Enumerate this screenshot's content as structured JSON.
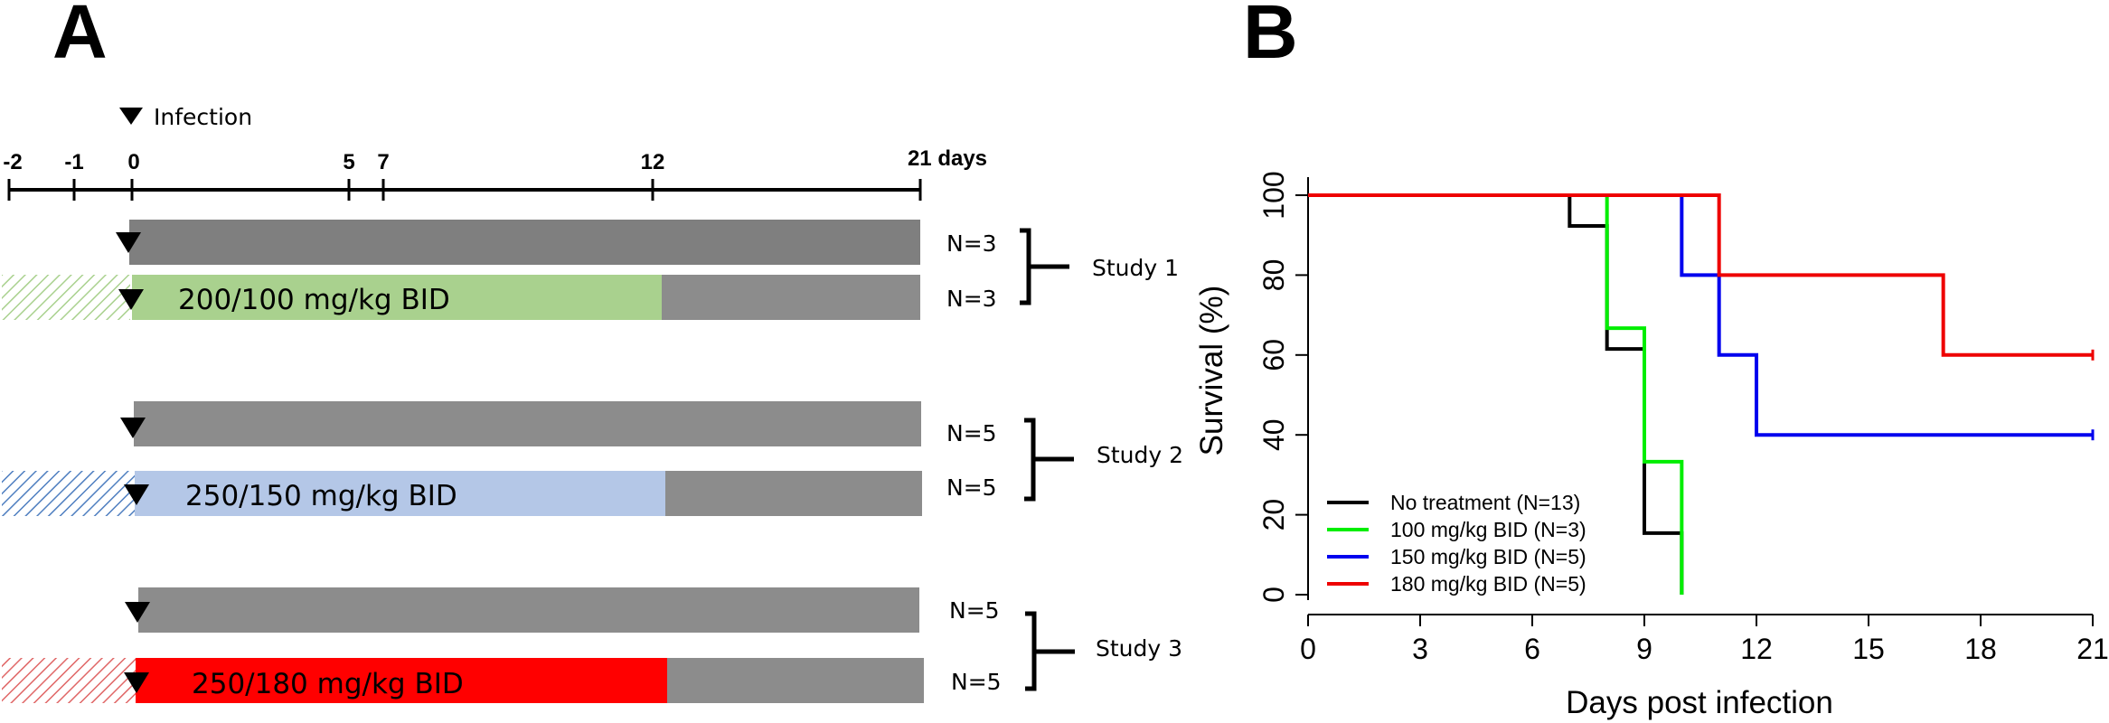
{
  "panel_a": {
    "letter": "A",
    "infection_label": "Infection",
    "timeline_ticks": [
      "-2",
      "-1",
      "0",
      "5",
      "7",
      "12"
    ],
    "timeline_end_label": "21 days",
    "rows": [
      {
        "n": "N=3",
        "label": "",
        "color": "#7f7f7f",
        "pretreat": ""
      },
      {
        "n": "N=3",
        "label": "200/100 mg/kg BID",
        "color": "#a9d18e",
        "pretreat": "#a9d18e"
      },
      {
        "n": "N=5",
        "label": "",
        "color": "#8c8c8c",
        "pretreat": ""
      },
      {
        "n": "N=5",
        "label": "250/150 mg/kg BID",
        "color": "#b4c7e7",
        "pretreat": "#4f7fc0"
      },
      {
        "n": "N=5",
        "label": "",
        "color": "#8c8c8c",
        "pretreat": ""
      },
      {
        "n": "N=5",
        "label": "250/180 mg/kg BID",
        "color": "#ff0000",
        "pretreat": "#e06666"
      }
    ],
    "studies": [
      "Study 1",
      "Study 2",
      "Study 3"
    ],
    "untreated_bar_color": "#8c8c8c"
  },
  "panel_b": {
    "letter": "B"
  },
  "chart_data": {
    "type": "line",
    "step": true,
    "xlabel": "Days post infection",
    "ylabel": "Survival (%)",
    "xlim": [
      0,
      21
    ],
    "ylim": [
      0,
      100
    ],
    "xticks": [
      0,
      3,
      6,
      9,
      12,
      15,
      18,
      21
    ],
    "yticks": [
      0,
      20,
      40,
      60,
      80,
      100
    ],
    "legend_position": "bottom-left",
    "series": [
      {
        "name": "No treatment (N=13)",
        "color": "#000000",
        "x": [
          0,
          7,
          7,
          8,
          8,
          9,
          9,
          10,
          10
        ],
        "y": [
          100,
          100,
          92.3,
          92.3,
          61.5,
          61.5,
          15.4,
          15.4,
          0
        ]
      },
      {
        "name": "100 mg/kg BID (N=3)",
        "color": "#00ee00",
        "x": [
          0,
          8,
          8,
          9,
          9,
          10,
          10
        ],
        "y": [
          100,
          100,
          66.7,
          66.7,
          33.3,
          33.3,
          0
        ]
      },
      {
        "name": "150 mg/kg BID (N=5)",
        "color": "#0000ee",
        "x": [
          0,
          10,
          10,
          11,
          11,
          12,
          12,
          21
        ],
        "y": [
          100,
          100,
          80,
          80,
          60,
          60,
          40,
          40
        ]
      },
      {
        "name": "180 mg/kg BID (N=5)",
        "color": "#ee0000",
        "x": [
          0,
          11,
          11,
          17,
          17,
          21
        ],
        "y": [
          100,
          100,
          80,
          80,
          60,
          60
        ]
      }
    ]
  }
}
